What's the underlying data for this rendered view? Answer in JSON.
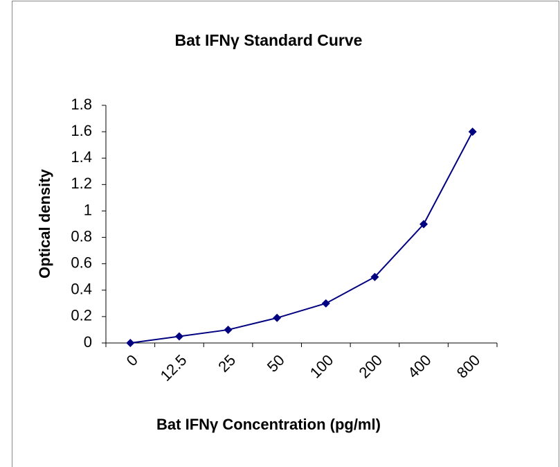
{
  "chart_data": {
    "type": "line",
    "title": "Bat IFNγ Standard Curve",
    "x_label": "Bat IFNγ Concentration (pg/ml)",
    "y_label": "Optical density",
    "categories": [
      "0",
      "12.5",
      "25",
      "50",
      "100",
      "200",
      "400",
      "800"
    ],
    "series": [
      {
        "name": "Bat IFNγ",
        "color": "#000080",
        "values": [
          0,
          0.05,
          0.1,
          0.19,
          0.3,
          0.5,
          0.9,
          1.6
        ]
      }
    ],
    "ylim": [
      0,
      1.8
    ],
    "yticks": [
      0,
      0.2,
      0.4,
      0.6,
      0.8,
      1,
      1.2,
      1.4,
      1.6,
      1.8
    ]
  }
}
